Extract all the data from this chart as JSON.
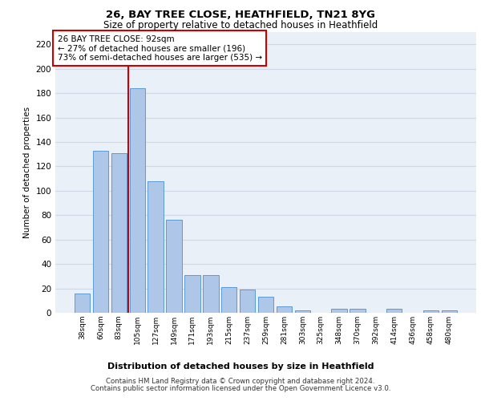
{
  "title1": "26, BAY TREE CLOSE, HEATHFIELD, TN21 8YG",
  "title2": "Size of property relative to detached houses in Heathfield",
  "xlabel": "Distribution of detached houses by size in Heathfield",
  "ylabel": "Number of detached properties",
  "categories": [
    "38sqm",
    "60sqm",
    "83sqm",
    "105sqm",
    "127sqm",
    "149sqm",
    "171sqm",
    "193sqm",
    "215sqm",
    "237sqm",
    "259sqm",
    "281sqm",
    "303sqm",
    "325sqm",
    "348sqm",
    "370sqm",
    "392sqm",
    "414sqm",
    "436sqm",
    "458sqm",
    "480sqm"
  ],
  "values": [
    16,
    133,
    131,
    184,
    108,
    76,
    31,
    31,
    21,
    19,
    13,
    5,
    2,
    0,
    3,
    3,
    0,
    3,
    0,
    2,
    2
  ],
  "bar_color": "#aec6e8",
  "bar_edge_color": "#5b9bd5",
  "vline_color": "#cc0000",
  "vline_index": 2.5,
  "annotation_text": "26 BAY TREE CLOSE: 92sqm\n← 27% of detached houses are smaller (196)\n73% of semi-detached houses are larger (535) →",
  "annotation_box_color": "#ffffff",
  "annotation_box_edge": "#cc0000",
  "grid_color": "#d0d8e8",
  "background_color": "#eaf0f8",
  "ylim": [
    0,
    230
  ],
  "yticks": [
    0,
    20,
    40,
    60,
    80,
    100,
    120,
    140,
    160,
    180,
    200,
    220
  ],
  "footer1": "Contains HM Land Registry data © Crown copyright and database right 2024.",
  "footer2": "Contains public sector information licensed under the Open Government Licence v3.0."
}
